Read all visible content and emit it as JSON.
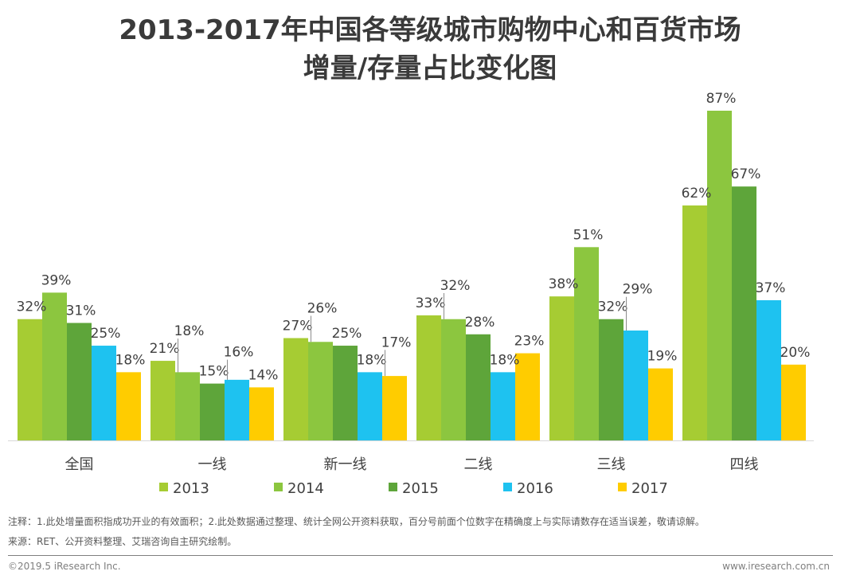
{
  "title": {
    "line1": "2013-2017年中国各等级城市购物中心和百货市场",
    "line2": "增量/存量占比变化图"
  },
  "chart_data": {
    "type": "bar",
    "categories": [
      "全国",
      "一线",
      "新一线",
      "二线",
      "三线",
      "四线"
    ],
    "series": [
      {
        "name": "2013",
        "color": "#a6cc33",
        "values": [
          32,
          21,
          27,
          33,
          38,
          62
        ]
      },
      {
        "name": "2014",
        "color": "#8cc63f",
        "values": [
          39,
          18,
          26,
          32,
          51,
          87
        ]
      },
      {
        "name": "2015",
        "color": "#5ea53a",
        "values": [
          31,
          15,
          25,
          28,
          32,
          67
        ]
      },
      {
        "name": "2016",
        "color": "#1ec2f0",
        "values": [
          25,
          16,
          18,
          18,
          29,
          37
        ]
      },
      {
        "name": "2017",
        "color": "#ffcc00",
        "values": [
          18,
          14,
          17,
          23,
          19,
          20
        ]
      }
    ],
    "labels": [
      [
        "32%",
        "39%",
        "31%",
        "25%",
        "18%"
      ],
      [
        "21%",
        "18%",
        "15%",
        "16%",
        "14%"
      ],
      [
        "27%",
        "26%",
        "25%",
        "18%",
        "17%"
      ],
      [
        "33%",
        "32%",
        "28%",
        "18%",
        "23%"
      ],
      [
        "38%",
        "51%",
        "32%",
        "29%",
        "19%"
      ],
      [
        "62%",
        "87%",
        "67%",
        "37%",
        "20%"
      ]
    ],
    "ylim": [
      0,
      87
    ],
    "xlabel": "",
    "ylabel": "",
    "grid": false,
    "legend": "bottom-center"
  },
  "footer": {
    "note": "注释：1.此处增量面积指成功开业的有效面积；2.此处数据通过整理、统计全网公开资料获取，百分号前面个位数字在精确度上与实际请数存在适当误差，敬请谅解。",
    "source": "来源：RET、公开资料整理、艾瑞咨询自主研究绘制。",
    "copyright": "©2019.5 iResearch Inc.",
    "website": "www.iresearch.com.cn"
  }
}
